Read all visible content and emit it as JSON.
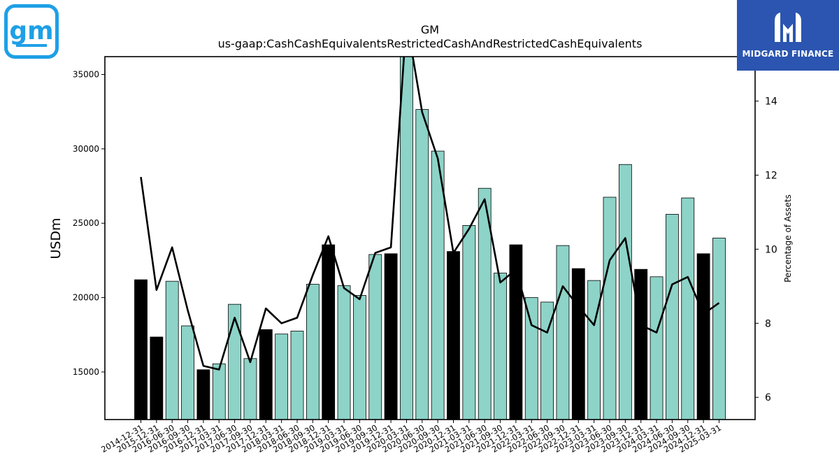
{
  "logo": {
    "text": "gm"
  },
  "brand": {
    "name": "MIDGARD FINANCE"
  },
  "colors": {
    "bar_quarter": "#8dd3c7",
    "bar_year_end": "#000000",
    "line": "#000000",
    "brand_bg": "#2b55b0",
    "logo": "#1ea0e6"
  },
  "chart_data": {
    "type": "bar",
    "title": "GM",
    "subtitle": "us-gaap:CashCashEquivalentsRestrictedCashAndRestrictedCashEquivalents",
    "ylabel": "USDm",
    "y2label": "Percentage of Assets",
    "ylim": [
      11800,
      36200
    ],
    "y2lim": [
      5.4,
      15.2
    ],
    "yticks": [
      15000,
      20000,
      25000,
      30000,
      35000
    ],
    "y2ticks": [
      6,
      8,
      10,
      12,
      14
    ],
    "categories": [
      "2014-12-31",
      "2015-12-31",
      "2016-06-30",
      "2016-09-30",
      "2016-12-31",
      "2017-03-31",
      "2017-06-30",
      "2017-09-30",
      "2017-12-31",
      "2018-03-31",
      "2018-06-30",
      "2018-09-30",
      "2018-12-31",
      "2019-03-31",
      "2019-06-30",
      "2019-09-30",
      "2019-12-31",
      "2020-03-31",
      "2020-06-30",
      "2020-09-30",
      "2020-12-31",
      "2021-03-31",
      "2021-06-30",
      "2021-09-30",
      "2021-12-31",
      "2022-03-31",
      "2022-06-30",
      "2022-09-30",
      "2022-12-31",
      "2023-03-31",
      "2023-06-30",
      "2023-09-30",
      "2023-12-31",
      "2024-03-31",
      "2024-06-30",
      "2024-09-30",
      "2024-12-31",
      "2025-03-31"
    ],
    "series": [
      {
        "type": "bar",
        "values": [
          21200,
          17350,
          21100,
          18100,
          15150,
          15550,
          19550,
          15900,
          17850,
          17550,
          17750,
          20900,
          23550,
          20800,
          20150,
          22900,
          22950,
          36250,
          32650,
          29850,
          23100,
          24850,
          27350,
          21650,
          23550,
          20000,
          19700,
          23500,
          21950,
          21150,
          26750,
          28950,
          21900,
          21400,
          25600,
          26700,
          22950,
          24000
        ],
        "year_end": [
          true,
          true,
          false,
          false,
          true,
          false,
          false,
          false,
          true,
          false,
          false,
          false,
          true,
          false,
          false,
          false,
          true,
          false,
          false,
          false,
          true,
          false,
          false,
          false,
          true,
          false,
          false,
          false,
          true,
          false,
          false,
          false,
          true,
          false,
          false,
          false,
          true,
          false
        ]
      },
      {
        "type": "line",
        "axis": "right",
        "values": [
          11.95,
          8.9,
          10.05,
          8.35,
          6.85,
          6.75,
          8.15,
          6.95,
          8.4,
          8.0,
          8.15,
          9.3,
          10.35,
          8.95,
          8.65,
          9.9,
          10.05,
          16.2,
          13.7,
          12.45,
          9.9,
          10.55,
          11.35,
          9.1,
          9.45,
          7.95,
          7.75,
          9.0,
          8.45,
          7.95,
          9.7,
          10.3,
          7.95,
          7.75,
          9.05,
          9.25,
          8.25,
          8.55
        ]
      }
    ]
  }
}
